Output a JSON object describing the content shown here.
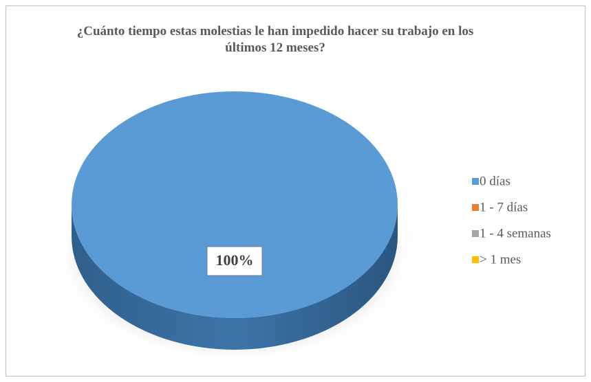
{
  "chart_data": {
    "type": "pie",
    "title": "¿Cuánto tiempo estas molestias le han impedido hacer su trabajo en los últimos 12 meses?",
    "categories": [
      "0 días",
      "1 - 7 días",
      "1 - 4 semanas",
      "> 1 mes"
    ],
    "values": [
      100,
      0,
      0,
      0
    ],
    "value_labels": [
      "100%",
      null,
      null,
      null
    ],
    "colors": [
      "#5b9bd5",
      "#ed7d31",
      "#a5a5a5",
      "#ffc000"
    ],
    "legend": "right"
  }
}
